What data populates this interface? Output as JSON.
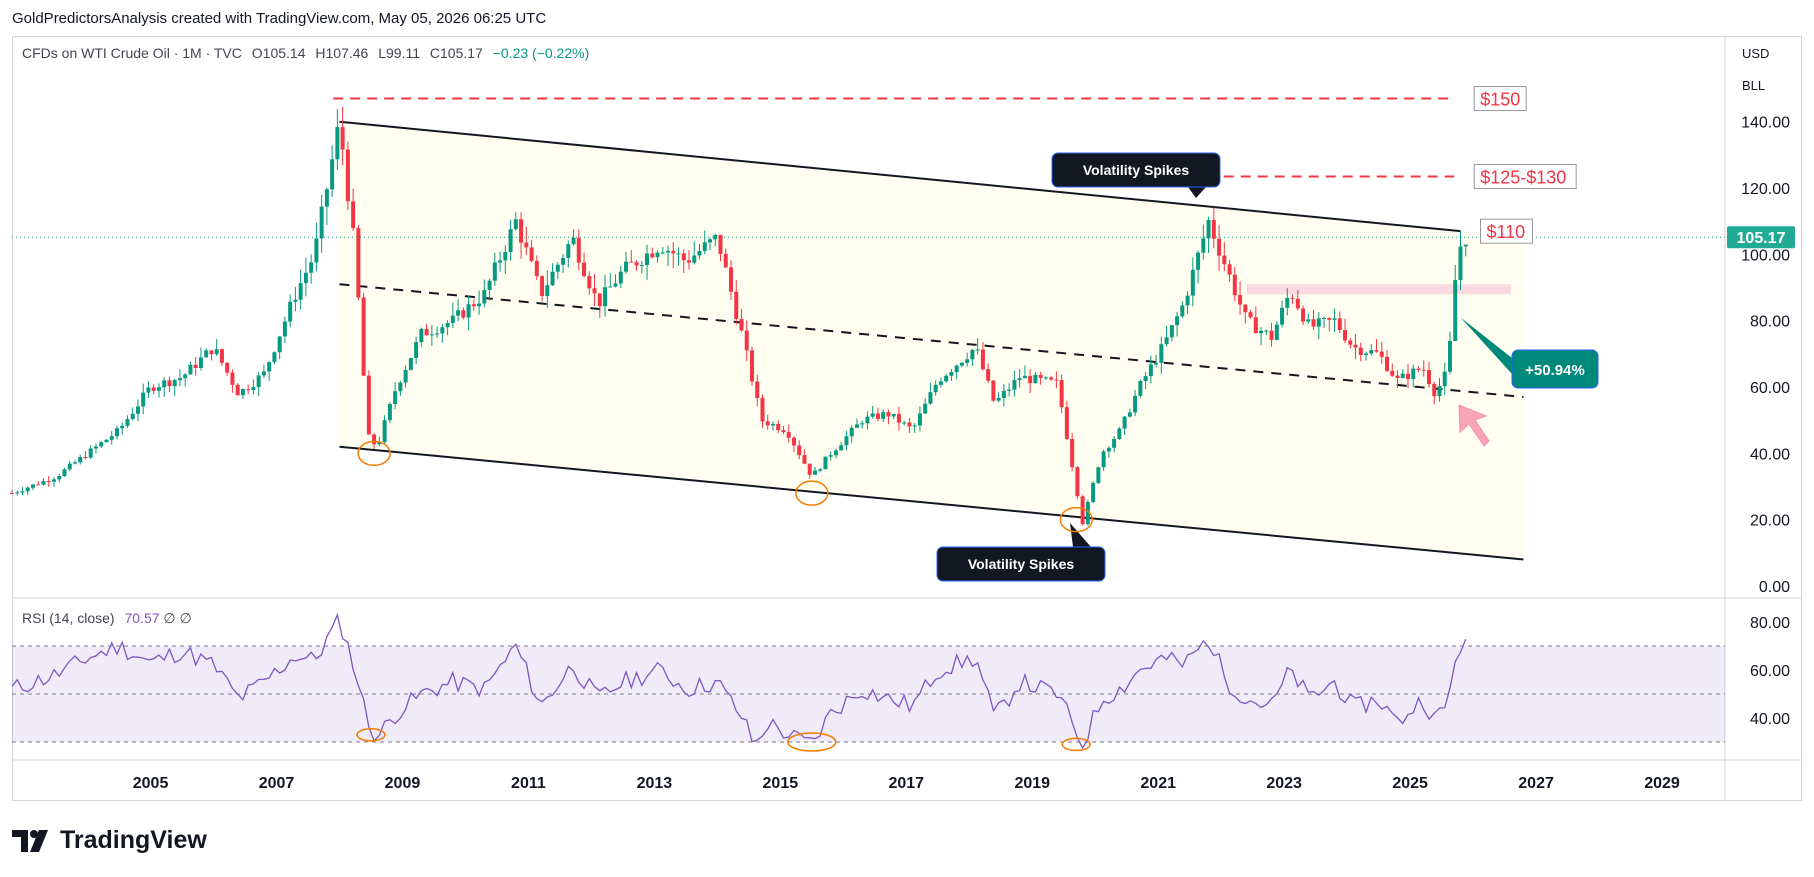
{
  "attribution": "GoldPredictorsAnalysis created with TradingView.com, May 05, 2026 06:25 UTC",
  "legend": {
    "symbol": "CFDs on WTI Crude Oil · 1M · TVC",
    "open": "O105.14",
    "high": "H107.46",
    "low": "L99.11",
    "close": "C105.17",
    "change": "−0.23 (−0.22%)"
  },
  "currency": "USD",
  "unit": "BLL",
  "rsi_legend": {
    "label": "RSI (14, close)",
    "value": "70.57",
    "extra": "∅ ∅"
  },
  "brand": "TradingView",
  "colors": {
    "up": "#089981",
    "down": "#f23645",
    "rsi": "#7e57c2",
    "level": "#f23645",
    "price_badge": "#22ab94",
    "annotation_dark": "#131722"
  },
  "chart_data": {
    "type": "candlestick",
    "price_axis": {
      "ticks": [
        0,
        20,
        40,
        60,
        80,
        100,
        120,
        140
      ],
      "labels": [
        "0.00",
        "20.00",
        "40.00",
        "60.00",
        "80.00",
        "100.00",
        "120.00",
        "140.00"
      ],
      "ylim": [
        0,
        155
      ]
    },
    "rsi_axis": {
      "ticks": [
        40,
        60,
        80
      ],
      "labels": [
        "40.00",
        "60.00",
        "80.00"
      ],
      "ylim": [
        25,
        85
      ],
      "bands": [
        30,
        50,
        70
      ]
    },
    "x_axis": {
      "labels": [
        "2005",
        "2007",
        "2009",
        "2011",
        "2013",
        "2015",
        "2017",
        "2019",
        "2021",
        "2023",
        "2025",
        "2027",
        "2029"
      ],
      "xlim": [
        2003.3,
        2030.5
      ]
    },
    "last_price": "105.17",
    "price_path": [
      [
        2003.3,
        28
      ],
      [
        2004.0,
        33
      ],
      [
        2004.5,
        40
      ],
      [
        2005.0,
        47
      ],
      [
        2005.5,
        60
      ],
      [
        2006.0,
        63
      ],
      [
        2006.5,
        72
      ],
      [
        2006.9,
        58
      ],
      [
        2007.3,
        64
      ],
      [
        2007.8,
        88
      ],
      [
        2008.1,
        100
      ],
      [
        2008.5,
        140
      ],
      [
        2008.75,
        100
      ],
      [
        2008.95,
        45
      ],
      [
        2009.1,
        42
      ],
      [
        2009.4,
        60
      ],
      [
        2009.8,
        76
      ],
      [
        2010.3,
        80
      ],
      [
        2010.8,
        88
      ],
      [
        2011.3,
        110
      ],
      [
        2011.7,
        88
      ],
      [
        2012.2,
        105
      ],
      [
        2012.6,
        85
      ],
      [
        2013.0,
        95
      ],
      [
        2013.6,
        103
      ],
      [
        2014.0,
        98
      ],
      [
        2014.5,
        105
      ],
      [
        2014.9,
        75
      ],
      [
        2015.2,
        50
      ],
      [
        2015.6,
        47
      ],
      [
        2016.0,
        33
      ],
      [
        2016.3,
        40
      ],
      [
        2016.8,
        50
      ],
      [
        2017.2,
        52
      ],
      [
        2017.6,
        47
      ],
      [
        2018.0,
        62
      ],
      [
        2018.6,
        72
      ],
      [
        2018.9,
        55
      ],
      [
        2019.3,
        63
      ],
      [
        2019.9,
        61
      ],
      [
        2020.3,
        19
      ],
      [
        2020.6,
        40
      ],
      [
        2020.9,
        47
      ],
      [
        2021.2,
        60
      ],
      [
        2021.6,
        73
      ],
      [
        2021.9,
        85
      ],
      [
        2022.3,
        110
      ],
      [
        2022.6,
        95
      ],
      [
        2022.9,
        80
      ],
      [
        2023.3,
        75
      ],
      [
        2023.6,
        89
      ],
      [
        2023.9,
        78
      ],
      [
        2024.3,
        80
      ],
      [
        2024.6,
        72
      ],
      [
        2025.0,
        70
      ],
      [
        2025.3,
        62
      ],
      [
        2025.7,
        66
      ],
      [
        2025.9,
        58
      ],
      [
        2026.1,
        65
      ],
      [
        2026.25,
        100
      ],
      [
        2026.35,
        105.17
      ]
    ],
    "rsi_path": [
      [
        2003.3,
        52
      ],
      [
        2004.0,
        58
      ],
      [
        2004.5,
        65
      ],
      [
        2005.0,
        70
      ],
      [
        2005.5,
        63
      ],
      [
        2006.0,
        68
      ],
      [
        2006.5,
        62
      ],
      [
        2006.9,
        48
      ],
      [
        2007.3,
        55
      ],
      [
        2007.8,
        66
      ],
      [
        2008.1,
        64
      ],
      [
        2008.5,
        81
      ],
      [
        2008.75,
        60
      ],
      [
        2008.95,
        38
      ],
      [
        2009.1,
        32
      ],
      [
        2009.4,
        42
      ],
      [
        2009.8,
        50
      ],
      [
        2010.3,
        55
      ],
      [
        2010.8,
        52
      ],
      [
        2011.3,
        70
      ],
      [
        2011.7,
        45
      ],
      [
        2012.2,
        62
      ],
      [
        2012.6,
        48
      ],
      [
        2013.0,
        55
      ],
      [
        2013.6,
        60
      ],
      [
        2014.0,
        52
      ],
      [
        2014.5,
        55
      ],
      [
        2014.9,
        40
      ],
      [
        2015.1,
        28
      ],
      [
        2015.3,
        38
      ],
      [
        2015.7,
        32
      ],
      [
        2016.0,
        29
      ],
      [
        2016.3,
        42
      ],
      [
        2016.8,
        52
      ],
      [
        2017.2,
        48
      ],
      [
        2017.6,
        45
      ],
      [
        2018.0,
        60
      ],
      [
        2018.6,
        65
      ],
      [
        2018.9,
        40
      ],
      [
        2019.3,
        55
      ],
      [
        2019.9,
        50
      ],
      [
        2020.3,
        29
      ],
      [
        2020.6,
        48
      ],
      [
        2020.9,
        52
      ],
      [
        2021.2,
        60
      ],
      [
        2021.6,
        65
      ],
      [
        2021.9,
        62
      ],
      [
        2022.3,
        73
      ],
      [
        2022.6,
        55
      ],
      [
        2022.9,
        48
      ],
      [
        2023.3,
        45
      ],
      [
        2023.6,
        60
      ],
      [
        2023.9,
        48
      ],
      [
        2024.3,
        55
      ],
      [
        2024.6,
        44
      ],
      [
        2025.0,
        48
      ],
      [
        2025.3,
        38
      ],
      [
        2025.7,
        48
      ],
      [
        2025.9,
        39
      ],
      [
        2026.1,
        46
      ],
      [
        2026.25,
        70
      ],
      [
        2026.35,
        70.57
      ]
    ],
    "channel": {
      "upper": [
        [
          2008.5,
          140
        ],
        [
          2026.3,
          107
        ]
      ],
      "middle": [
        [
          2008.5,
          91
        ],
        [
          2027.3,
          57
        ]
      ],
      "lower": [
        [
          2008.5,
          42
        ],
        [
          2027.3,
          8
        ]
      ]
    },
    "levels": [
      {
        "label": "$150",
        "price": 147,
        "from": 2008.4,
        "to": 2026.2
      },
      {
        "label": "$125-$130",
        "price": 123.5,
        "from": 2022.0,
        "to": 2026.2
      },
      {
        "label": "$110",
        "price": 107,
        "from": 2026.3,
        "to": 2026.3
      }
    ],
    "zone": {
      "from": 2022.9,
      "to": 2027.1,
      "low": 88,
      "high": 91
    },
    "callouts": [
      {
        "text": "Volatility Spikes",
        "anchor": [
          2022.1,
          117
        ]
      },
      {
        "text": "Volatility Spikes",
        "anchor": [
          2020.1,
          19
        ]
      }
    ],
    "gain_box": {
      "text": "+50.94%"
    },
    "circled_lows": [
      [
        2009.05,
        40
      ],
      [
        2016.0,
        28
      ],
      [
        2020.2,
        20
      ]
    ],
    "rsi_circles": [
      [
        2009.0,
        33
      ],
      [
        2016.0,
        30
      ],
      [
        2020.2,
        29
      ]
    ]
  }
}
